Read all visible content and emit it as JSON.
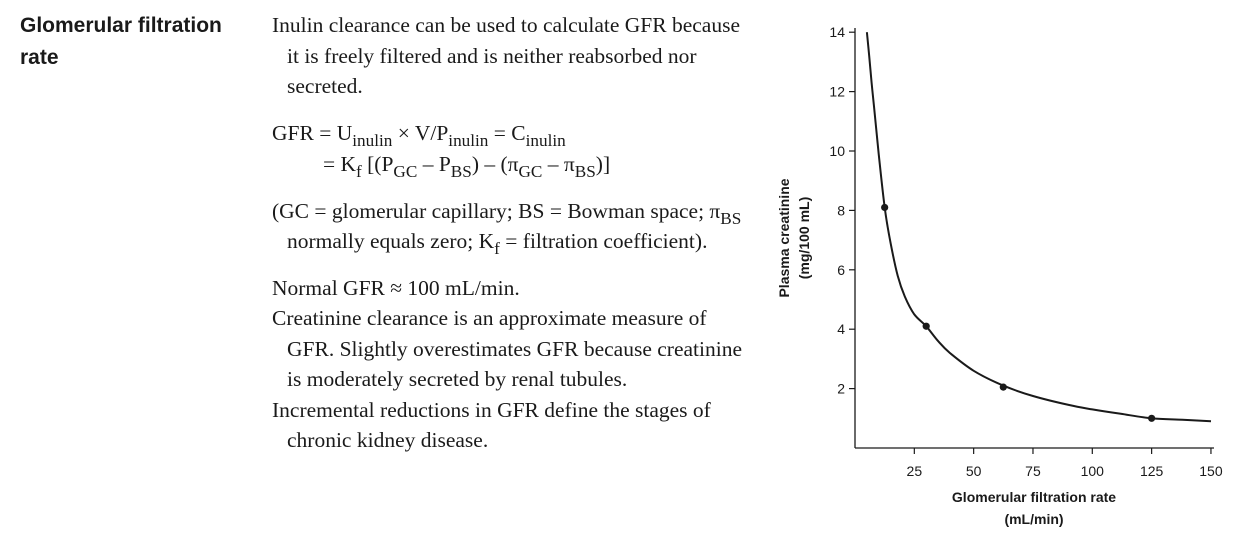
{
  "heading": {
    "line1": "Glomerular filtration",
    "line2": "rate"
  },
  "content": {
    "p1": "Inulin clearance can be used to calculate GFR because it is freely filtered and is neither reabsorbed nor secreted.",
    "formula": {
      "l1_a": "GFR = U",
      "l1_sub1": "inulin",
      "l1_b": " × V/P",
      "l1_sub2": "inulin",
      "l1_c": " = C",
      "l1_sub3": "inulin",
      "l2_a": "= K",
      "l2_sub1": "f",
      "l2_b": " [(P",
      "l2_sub2": "GC",
      "l2_c": " – P",
      "l2_sub3": "BS",
      "l2_d": ") – (π",
      "l2_sub4": "GC",
      "l2_e": " – π",
      "l2_sub5": "BS",
      "l2_f": ")]"
    },
    "note": {
      "a": "(GC = glomerular capillary; BS = Bowman space; π",
      "sub1": "BS",
      "b": " normally equals zero; K",
      "sub2": "f",
      "c": " = filtration coefficient)."
    },
    "p_normal": "Normal GFR ≈ 100 mL/min.",
    "p_creatinine": "Creatinine clearance is an approximate measure of GFR. Slightly overestimates GFR because creatinine is moderately secreted by renal tubules.",
    "p_ckd": "Incremental reductions in GFR define the stages of chronic kidney disease."
  },
  "chart_data": {
    "type": "line",
    "xlabel_line1": "Glomerular filtration rate",
    "xlabel_line2": "(mL/min)",
    "ylabel_line1": "Plasma creatinine",
    "ylabel_line2": "(mg/100 mL)",
    "xlim": [
      0,
      150
    ],
    "ylim": [
      0,
      14
    ],
    "xticks": [
      25,
      50,
      75,
      100,
      125,
      150
    ],
    "yticks": [
      2,
      4,
      6,
      8,
      10,
      12,
      14
    ],
    "curve": {
      "x": [
        5,
        6,
        7,
        8,
        10,
        12.5,
        15,
        18,
        21,
        25,
        30,
        35,
        40,
        50,
        62.5,
        75,
        90,
        100,
        112,
        125,
        138,
        150
      ],
      "y": [
        14,
        13.2,
        12.3,
        11.5,
        9.9,
        8.1,
        6.9,
        5.8,
        5.1,
        4.5,
        4.1,
        3.6,
        3.2,
        2.6,
        2.1,
        1.75,
        1.45,
        1.3,
        1.15,
        1.0,
        0.95,
        0.9
      ]
    },
    "points": {
      "x": [
        12.5,
        30,
        62.5,
        125
      ],
      "y": [
        8.1,
        4.1,
        2.05,
        1.0
      ]
    },
    "grid": false
  }
}
